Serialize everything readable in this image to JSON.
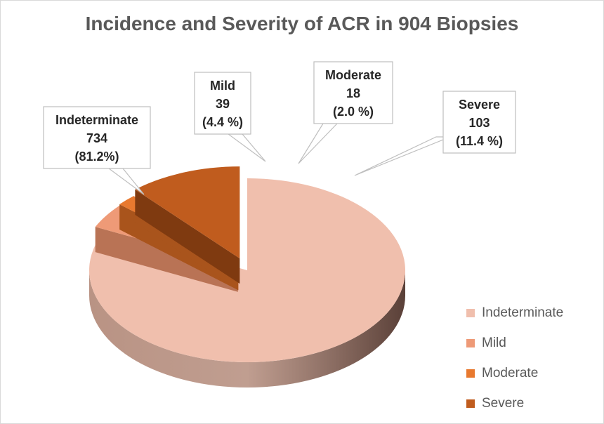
{
  "chart_data": {
    "type": "pie",
    "title": "Incidence and Severity of ACR in 904 Biopsies",
    "slices": [
      {
        "name": "Indeterminate",
        "value": 734,
        "label_value": "734",
        "label_pct": "(81.2%)",
        "color": "#f0bfad",
        "side": "#b99384"
      },
      {
        "name": "Mild",
        "value": 39,
        "label_value": "39",
        "label_pct": "(4.4 %)",
        "color": "#ee9a77",
        "side": "#b97355"
      },
      {
        "name": "Moderate",
        "value": 18,
        "label_value": "18",
        "label_pct": "(2.0 %)",
        "color": "#e8792f",
        "side": "#a9541c"
      },
      {
        "name": "Severe",
        "value": 103,
        "label_value": "103",
        "label_pct": "(11.4 %)",
        "color": "#c05c1e",
        "side": "#7f3a10"
      }
    ],
    "legend_position": "bottom-right",
    "exploded": true,
    "style": "3d"
  }
}
